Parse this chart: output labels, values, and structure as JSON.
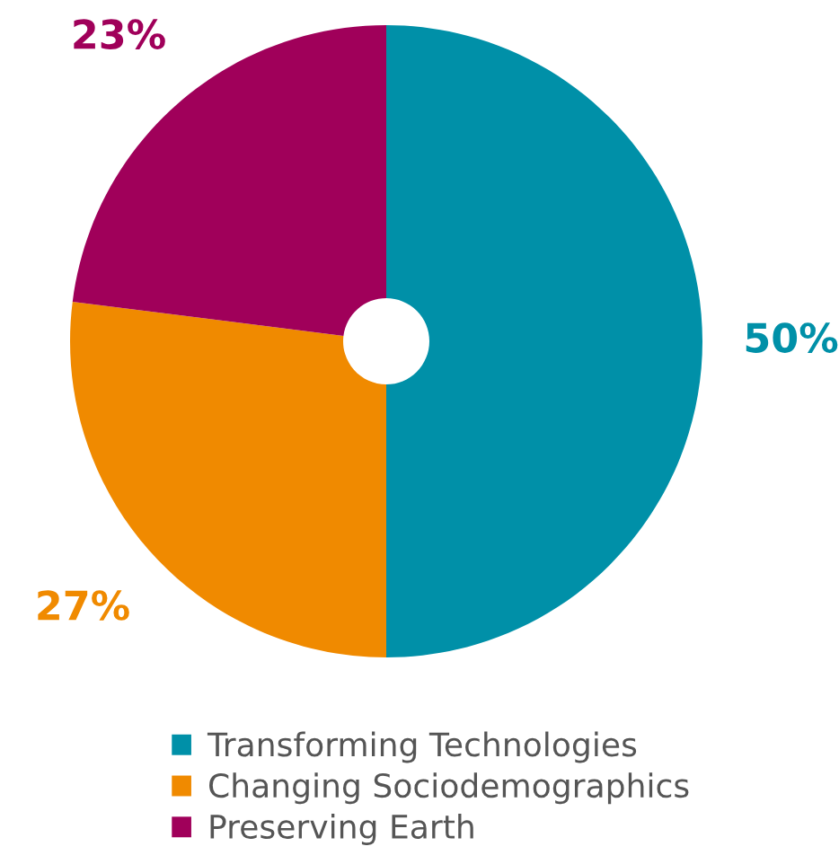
{
  "chart_data": {
    "type": "donut",
    "categories": [
      "Transforming Technologies",
      "Changing Sociodemographics",
      "Preserving Earth"
    ],
    "values": [
      50,
      27,
      23
    ],
    "colors": [
      "#0090a8",
      "#f08a00",
      "#a0005a"
    ],
    "value_labels": [
      "50%",
      "27%",
      "23%"
    ],
    "legend": "bottom"
  }
}
